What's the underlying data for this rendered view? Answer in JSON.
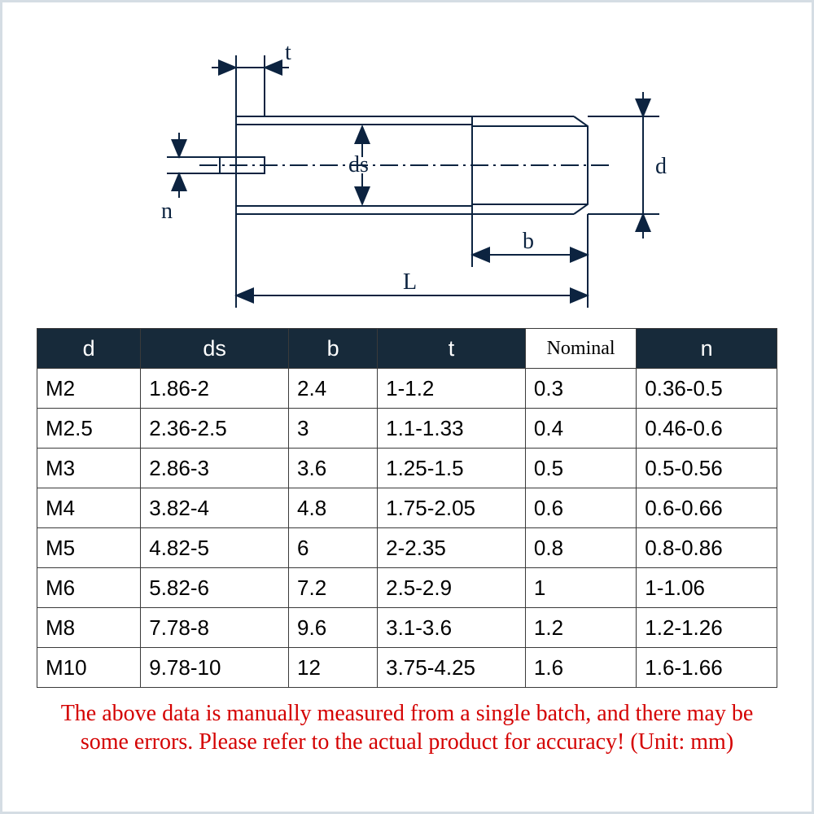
{
  "diagram": {
    "labels": {
      "t": "t",
      "n": "n",
      "ds": "ds",
      "d": "d",
      "b": "b",
      "L": "L"
    },
    "stroke": "#0c2340",
    "stroke_width": 2,
    "font_family": "serif",
    "font_size": 28
  },
  "table": {
    "header_bg": "#172a3a",
    "header_fg": "#ffffff",
    "border_color": "#3a3a3a",
    "columns": [
      "d",
      "ds",
      "b",
      "t",
      "Nominal",
      "n"
    ],
    "column_widths_pct": [
      14,
      20,
      12,
      20,
      15,
      19
    ],
    "cell_font_size": 26,
    "rows": [
      [
        "M2",
        "1.86-2",
        "2.4",
        "1-1.2",
        "0.3",
        "0.36-0.5"
      ],
      [
        "M2.5",
        "2.36-2.5",
        "3",
        "1.1-1.33",
        "0.4",
        "0.46-0.6"
      ],
      [
        "M3",
        "2.86-3",
        "3.6",
        "1.25-1.5",
        "0.5",
        "0.5-0.56"
      ],
      [
        "M4",
        "3.82-4",
        "4.8",
        "1.75-2.05",
        "0.6",
        "0.6-0.66"
      ],
      [
        "M5",
        "4.82-5",
        "6",
        "2-2.35",
        "0.8",
        "0.8-0.86"
      ],
      [
        "M6",
        "5.82-6",
        "7.2",
        "2.5-2.9",
        "1",
        "1-1.06"
      ],
      [
        "M8",
        "7.78-8",
        "9.6",
        "3.1-3.6",
        "1.2",
        "1.2-1.26"
      ],
      [
        "M10",
        "9.78-10",
        "12",
        "3.75-4.25",
        "1.6",
        "1.6-1.66"
      ]
    ]
  },
  "footnote": "The above data is manually measured from a single batch, and there may be some errors. Please refer to the actual product for accuracy! (Unit: mm)",
  "footnote_color": "#d40000",
  "footnote_font_size": 28
}
